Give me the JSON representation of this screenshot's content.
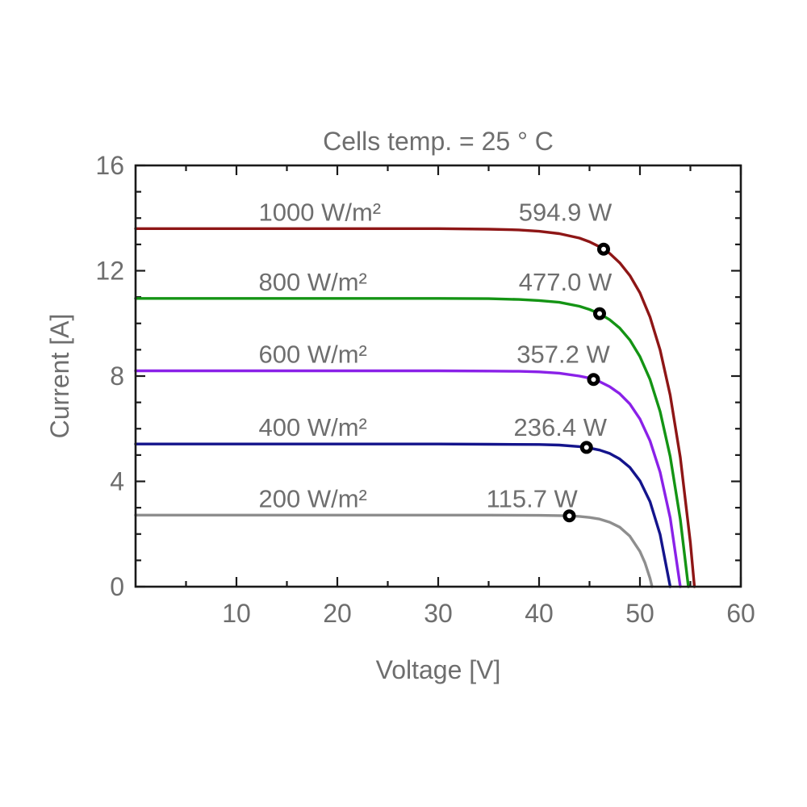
{
  "colors": {
    "background": "#ffffff",
    "text": "#6e6e6e",
    "axis": "#1a1a1a",
    "marker_stroke": "#000000",
    "marker_fill": "#ffffff"
  },
  "chart_data": {
    "type": "line",
    "title": "Cells temp. = 25 ° C",
    "xlabel": "Voltage [V]",
    "ylabel": "Current [A]",
    "xlim": [
      0,
      60
    ],
    "ylim": [
      0,
      16
    ],
    "xticks": [
      10,
      20,
      30,
      40,
      50,
      60
    ],
    "yticks": [
      0,
      4,
      8,
      12,
      16
    ],
    "x_minor_step": 5,
    "y_minor_step": 1,
    "grid": false,
    "legend": "inline-curve-labels",
    "series": [
      {
        "name": "1000 W/m2",
        "label": "1000 W/m²",
        "irradiance_w_m2": 1000,
        "color": "#8e1616",
        "isc_a": 13.6,
        "voc_v": 55.4,
        "mpp": {
          "v": 46.4,
          "i": 12.82,
          "power_w": 594.9,
          "power_label": "594.9 W"
        },
        "label_v": 12.2,
        "power_label_center_v": 42.6,
        "points": [
          [
            0,
            13.6
          ],
          [
            5,
            13.6
          ],
          [
            10,
            13.6
          ],
          [
            15,
            13.6
          ],
          [
            20,
            13.6
          ],
          [
            25,
            13.6
          ],
          [
            30,
            13.6
          ],
          [
            35,
            13.58
          ],
          [
            38,
            13.55
          ],
          [
            40,
            13.5
          ],
          [
            42,
            13.41
          ],
          [
            44,
            13.24
          ],
          [
            45,
            13.1
          ],
          [
            46,
            12.91
          ],
          [
            46.4,
            12.82
          ],
          [
            47,
            12.66
          ],
          [
            48,
            12.3
          ],
          [
            49,
            11.82
          ],
          [
            50,
            11.16
          ],
          [
            51,
            10.24
          ],
          [
            52,
            8.99
          ],
          [
            53,
            7.27
          ],
          [
            54,
            4.91
          ],
          [
            55,
            1.67
          ],
          [
            55.4,
            0
          ]
        ]
      },
      {
        "name": "800 W/m2",
        "label": "800 W/m²",
        "irradiance_w_m2": 800,
        "color": "#149414",
        "isc_a": 10.95,
        "voc_v": 54.8,
        "mpp": {
          "v": 46.0,
          "i": 10.37,
          "power_w": 477.0,
          "power_label": "477.0 W"
        },
        "label_v": 12.2,
        "power_label_center_v": 42.6,
        "points": [
          [
            0,
            10.95
          ],
          [
            5,
            10.95
          ],
          [
            10,
            10.95
          ],
          [
            15,
            10.95
          ],
          [
            20,
            10.95
          ],
          [
            25,
            10.95
          ],
          [
            30,
            10.95
          ],
          [
            35,
            10.94
          ],
          [
            38,
            10.91
          ],
          [
            40,
            10.87
          ],
          [
            42,
            10.8
          ],
          [
            44,
            10.65
          ],
          [
            45,
            10.53
          ],
          [
            46,
            10.37
          ],
          [
            47,
            10.14
          ],
          [
            48,
            9.82
          ],
          [
            49,
            9.37
          ],
          [
            50,
            8.74
          ],
          [
            51,
            7.87
          ],
          [
            52,
            6.65
          ],
          [
            53,
            4.94
          ],
          [
            54,
            2.56
          ],
          [
            54.8,
            0
          ]
        ]
      },
      {
        "name": "600 W/m2",
        "label": "600 W/m²",
        "irradiance_w_m2": 600,
        "color": "#8a21e8",
        "isc_a": 8.2,
        "voc_v": 54.0,
        "mpp": {
          "v": 45.4,
          "i": 7.87,
          "power_w": 357.2,
          "power_label": "357.2 W"
        },
        "label_v": 12.2,
        "power_label_center_v": 42.4,
        "points": [
          [
            0,
            8.2
          ],
          [
            5,
            8.2
          ],
          [
            10,
            8.2
          ],
          [
            15,
            8.2
          ],
          [
            20,
            8.2
          ],
          [
            25,
            8.2
          ],
          [
            30,
            8.2
          ],
          [
            35,
            8.19
          ],
          [
            38,
            8.18
          ],
          [
            40,
            8.16
          ],
          [
            42,
            8.11
          ],
          [
            44,
            8.0
          ],
          [
            45,
            7.92
          ],
          [
            45.4,
            7.87
          ],
          [
            46,
            7.79
          ],
          [
            47,
            7.6
          ],
          [
            48,
            7.33
          ],
          [
            49,
            6.94
          ],
          [
            50,
            6.37
          ],
          [
            51,
            5.54
          ],
          [
            52,
            4.35
          ],
          [
            53,
            2.61
          ],
          [
            54,
            0
          ]
        ]
      },
      {
        "name": "400 W/m2",
        "label": "400 W/m²",
        "irradiance_w_m2": 400,
        "color": "#14148c",
        "isc_a": 5.42,
        "voc_v": 53.0,
        "mpp": {
          "v": 44.7,
          "i": 5.29,
          "power_w": 236.4,
          "power_label": "236.4 W"
        },
        "label_v": 12.2,
        "power_label_center_v": 42.1,
        "points": [
          [
            0,
            5.42
          ],
          [
            5,
            5.42
          ],
          [
            10,
            5.42
          ],
          [
            15,
            5.42
          ],
          [
            20,
            5.42
          ],
          [
            25,
            5.42
          ],
          [
            30,
            5.42
          ],
          [
            35,
            5.41
          ],
          [
            40,
            5.4
          ],
          [
            42,
            5.38
          ],
          [
            44,
            5.32
          ],
          [
            44.7,
            5.29
          ],
          [
            46,
            5.19
          ],
          [
            47,
            5.06
          ],
          [
            48,
            4.85
          ],
          [
            49,
            4.53
          ],
          [
            50,
            4.02
          ],
          [
            51,
            3.23
          ],
          [
            52,
            1.98
          ],
          [
            53,
            0
          ]
        ]
      },
      {
        "name": "200 W/m2",
        "label": "200 W/m²",
        "irradiance_w_m2": 200,
        "color": "#8e8e8e",
        "isc_a": 2.72,
        "voc_v": 51.2,
        "mpp": {
          "v": 43.0,
          "i": 2.69,
          "power_w": 115.7,
          "power_label": "115.7 W"
        },
        "label_v": 12.2,
        "power_label_center_v": 39.3,
        "points": [
          [
            0,
            2.72
          ],
          [
            5,
            2.72
          ],
          [
            10,
            2.72
          ],
          [
            15,
            2.72
          ],
          [
            20,
            2.72
          ],
          [
            25,
            2.72
          ],
          [
            30,
            2.72
          ],
          [
            35,
            2.72
          ],
          [
            40,
            2.71
          ],
          [
            42,
            2.7
          ],
          [
            43,
            2.69
          ],
          [
            44,
            2.67
          ],
          [
            45,
            2.63
          ],
          [
            46,
            2.57
          ],
          [
            47,
            2.45
          ],
          [
            48,
            2.26
          ],
          [
            49,
            1.92
          ],
          [
            50,
            1.34
          ],
          [
            50.5,
            0.9
          ],
          [
            51,
            0.32
          ],
          [
            51.2,
            0
          ]
        ]
      }
    ]
  }
}
